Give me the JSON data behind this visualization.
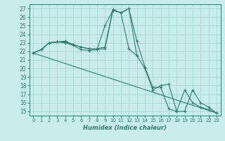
{
  "xlabel": "Humidex (Indice chaleur)",
  "bg_color": "#c8ecec",
  "grid_color": "#aad4d4",
  "line_color": "#2e7d72",
  "xlim": [
    -0.5,
    23.5
  ],
  "ylim": [
    14.5,
    27.5
  ],
  "xticks": [
    0,
    1,
    2,
    3,
    4,
    5,
    6,
    7,
    8,
    9,
    10,
    11,
    12,
    13,
    14,
    15,
    16,
    17,
    18,
    19,
    20,
    21,
    22,
    23
  ],
  "yticks": [
    15,
    16,
    17,
    18,
    19,
    20,
    21,
    22,
    23,
    24,
    25,
    26,
    27
  ],
  "lines": [
    {
      "x": [
        0,
        1,
        2,
        3,
        4,
        5,
        6,
        7,
        8,
        9,
        10,
        11,
        12,
        13,
        14,
        15,
        16,
        17,
        18,
        19,
        20,
        21,
        22,
        23
      ],
      "y": [
        21.8,
        22.2,
        23.0,
        23.1,
        23.0,
        22.7,
        22.2,
        22.1,
        22.2,
        25.0,
        26.8,
        26.5,
        27.0,
        23.2,
        20.2,
        17.8,
        17.8,
        15.3,
        15.0,
        17.5,
        16.0,
        15.5,
        15.2,
        14.8
      ],
      "marker": true
    },
    {
      "x": [
        0,
        1,
        2,
        3,
        4,
        5,
        6,
        7,
        8,
        9,
        10,
        11,
        12,
        13
      ],
      "y": [
        21.8,
        22.2,
        23.0,
        23.1,
        23.2,
        22.8,
        22.5,
        22.3,
        22.3,
        22.5,
        26.9,
        26.5,
        22.3,
        21.5
      ],
      "marker": true
    },
    {
      "x": [
        0,
        1,
        2,
        3,
        4,
        5,
        6,
        7,
        8,
        9,
        10,
        11,
        12,
        13,
        14,
        15,
        16,
        17,
        18,
        19,
        20,
        21,
        22,
        23
      ],
      "y": [
        21.8,
        22.2,
        23.0,
        23.1,
        23.1,
        22.8,
        22.5,
        22.3,
        22.2,
        22.3,
        26.8,
        26.5,
        27.0,
        21.5,
        20.0,
        17.5,
        18.0,
        18.2,
        15.0,
        15.0,
        17.5,
        16.0,
        15.5,
        14.8
      ],
      "marker": true
    },
    {
      "x": [
        0,
        23
      ],
      "y": [
        21.8,
        14.8
      ],
      "marker": false
    }
  ]
}
